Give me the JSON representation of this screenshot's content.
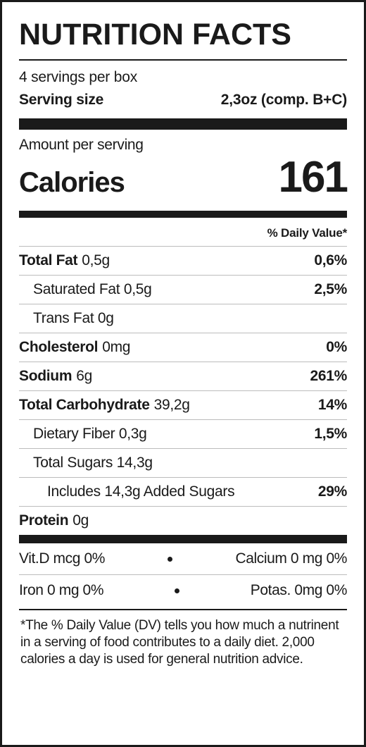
{
  "title": "NUTRITION FACTS",
  "servings_per": "4 servings per box",
  "serving_size": {
    "label": "Serving size",
    "value": "2,3oz (comp. B+C)"
  },
  "amount_label": "Amount per serving",
  "calories": {
    "label": "Calories",
    "value": "161"
  },
  "dv_header": "% Daily Value*",
  "rows": {
    "total_fat": {
      "label": "Total Fat",
      "amount": "0,5g",
      "pct": "0,6%"
    },
    "sat_fat": {
      "label": "Saturated Fat 0,5g",
      "pct": "2,5%"
    },
    "trans_fat": {
      "label": "Trans Fat 0g"
    },
    "cholesterol": {
      "label": "Cholesterol",
      "amount": "0mg",
      "pct": "0%"
    },
    "sodium": {
      "label": "Sodium",
      "amount": "6g",
      "pct": "261%"
    },
    "carb": {
      "label": "Total Carbohydrate",
      "amount": "39,2g",
      "pct": "14%"
    },
    "fiber": {
      "label": "Dietary Fiber 0,3g",
      "pct": "1,5%"
    },
    "sugars": {
      "label": "Total Sugars 14,3g"
    },
    "added": {
      "label": "Includes 14,3g Added Sugars",
      "pct": "29%"
    },
    "protein": {
      "label": "Protein",
      "amount": "0g"
    }
  },
  "micros": {
    "vitd": "Vit.D mcg 0%",
    "calcium": "Calcium 0 mg 0%",
    "iron": "Iron 0 mg 0%",
    "potas": "Potas. 0mg 0%"
  },
  "footnote": "*The % Daily Value (DV) tells you how much a nutrinent in a serving of food contributes to a daily diet. 2,000 calories a day is used for general nutrition advice."
}
